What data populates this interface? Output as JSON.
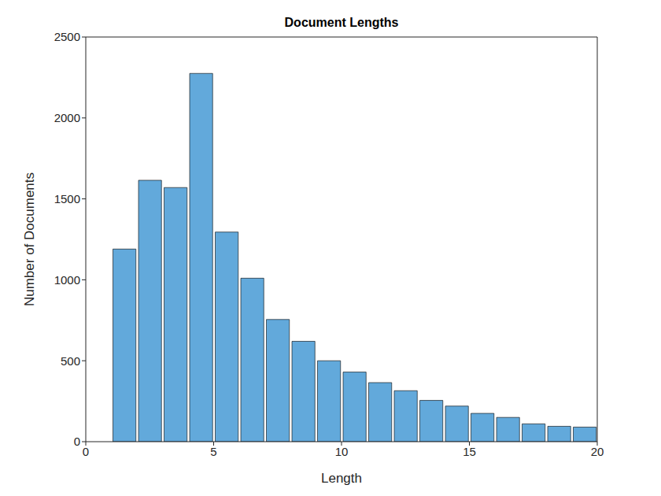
{
  "chart_data": {
    "type": "histogram",
    "title": "Document Lengths",
    "x_label": "Length",
    "y_label": "Number of Documents",
    "bins": [
      1,
      2,
      3,
      4,
      5,
      6,
      7,
      8,
      9,
      10,
      11,
      12,
      13,
      14,
      15,
      16,
      17,
      18,
      19,
      20
    ],
    "values": [
      1190,
      1615,
      1570,
      2275,
      1295,
      1010,
      755,
      620,
      500,
      430,
      365,
      315,
      255,
      220,
      175,
      150,
      110,
      95,
      90
    ],
    "color": "#62a9db",
    "xlim": [
      0,
      20
    ],
    "xticks": [
      0,
      5,
      10,
      15,
      20
    ],
    "ylim": [
      0,
      2500
    ],
    "yticks": [
      0,
      500,
      1000,
      1500,
      2000,
      2500
    ],
    "grid": false
  }
}
